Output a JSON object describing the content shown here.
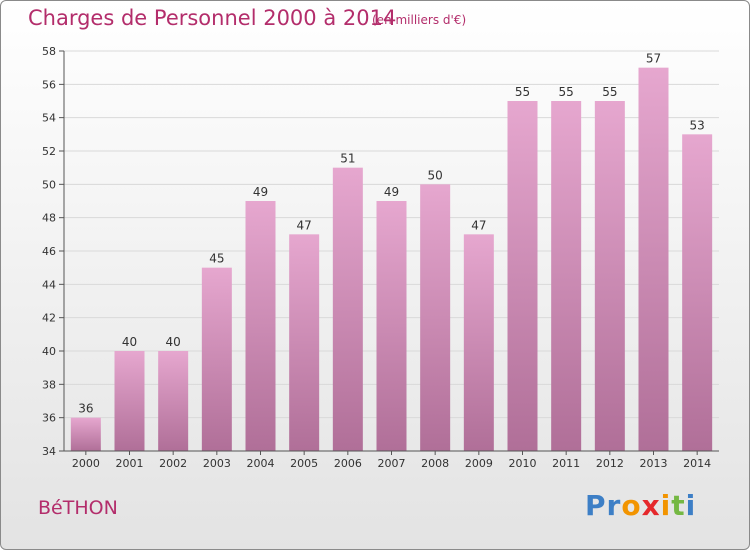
{
  "title": "Charges de Personnel 2000 à 2014",
  "subtitle": "(en milliers d'€)",
  "commune": "BéTHON",
  "logo": {
    "text": "Proxiti",
    "letters": [
      "P",
      "r",
      "o",
      "x",
      "i",
      "t",
      "i"
    ],
    "colors": [
      "#3d7fc6",
      "#3d7fc6",
      "#f29400",
      "#e5282c",
      "#f29400",
      "#75b843",
      "#3d7fc6"
    ]
  },
  "colors": {
    "title": "#b32d6b",
    "bar_top": "#e6a7cf",
    "bar_bottom": "#b06f98",
    "grid": "#d9d9d9"
  },
  "chart_data": {
    "type": "bar",
    "categories": [
      "2000",
      "2001",
      "2002",
      "2003",
      "2004",
      "2005",
      "2006",
      "2007",
      "2008",
      "2009",
      "2010",
      "2011",
      "2012",
      "2013",
      "2014"
    ],
    "values": [
      36,
      40,
      40,
      45,
      49,
      47,
      51,
      49,
      50,
      47,
      55,
      55,
      55,
      57,
      53
    ],
    "ylim": [
      34,
      58
    ],
    "yticks": [
      34,
      36,
      38,
      40,
      42,
      44,
      46,
      48,
      50,
      52,
      54,
      56,
      58
    ],
    "grid": "horizontal",
    "data_labels": true
  }
}
